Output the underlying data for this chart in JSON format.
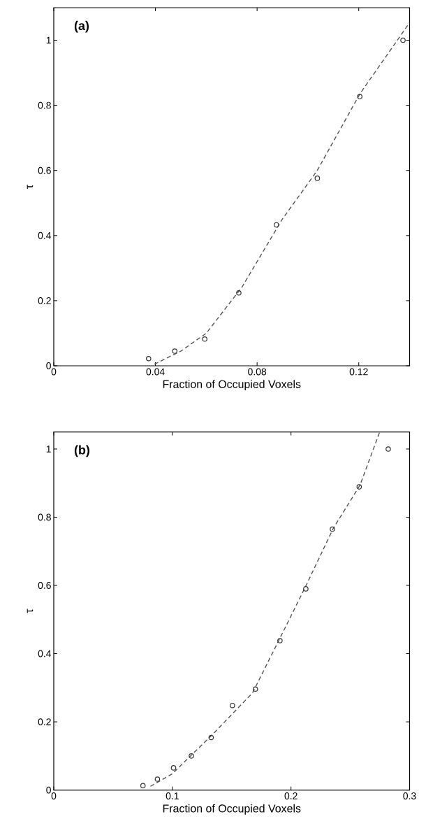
{
  "chart_data": [
    {
      "type": "scatter",
      "xlabel": "Fraction of Occupied Voxels",
      "ylabel": "τ",
      "annotations": [
        "(a)"
      ],
      "xlim": [
        0,
        0.14
      ],
      "ylim": [
        0,
        1.1
      ],
      "xticks": [
        0,
        0.04,
        0.08,
        0.12
      ],
      "yticks": [
        0,
        0.2,
        0.4,
        0.6,
        0.8,
        1
      ],
      "series": [
        {
          "type": "scatter",
          "color": "#333333",
          "marker": "circle",
          "x": [
            0.0373,
            0.0476,
            0.0594,
            0.0728,
            0.0876,
            0.1037,
            0.1204,
            0.1374
          ],
          "values": [
            0.022,
            0.045,
            0.082,
            0.224,
            0.433,
            0.576,
            0.827,
            1.0
          ]
        },
        {
          "type": "line",
          "color": "#555555",
          "line_style": "dashed",
          "x": [
            0.0396,
            0.05,
            0.06,
            0.074,
            0.0898,
            0.1036,
            0.1205,
            0.14
          ],
          "values": [
            0.005,
            0.045,
            0.1,
            0.241,
            0.449,
            0.599,
            0.836,
            1.054
          ]
        }
      ]
    },
    {
      "type": "scatter",
      "xlabel": "Fraction of Occupied Voxels",
      "ylabel": "τ",
      "annotations": [
        "(b)"
      ],
      "xlim": [
        0,
        0.3
      ],
      "ylim": [
        0,
        1.05
      ],
      "xticks": [
        0,
        0.1,
        0.2,
        0.3
      ],
      "yticks": [
        0,
        0.2,
        0.4,
        0.6,
        0.8,
        1
      ],
      "series": [
        {
          "type": "scatter",
          "color": "#333333",
          "marker": "circle",
          "x": [
            0.0752,
            0.0874,
            0.101,
            0.116,
            0.1327,
            0.1506,
            0.17,
            0.1907,
            0.2125,
            0.2349,
            0.2575,
            0.282
          ],
          "values": [
            0.013,
            0.032,
            0.065,
            0.1,
            0.154,
            0.248,
            0.296,
            0.438,
            0.59,
            0.765,
            0.889,
            1.0
          ]
        },
        {
          "type": "line",
          "color": "#555555",
          "line_style": "dashed",
          "x": [
            0.0815,
            0.0997,
            0.1336,
            0.1676,
            0.1948,
            0.2129,
            0.2356,
            0.2582,
            0.2748
          ],
          "values": [
            0.011,
            0.047,
            0.162,
            0.285,
            0.474,
            0.601,
            0.767,
            0.894,
            1.05
          ]
        }
      ]
    }
  ]
}
